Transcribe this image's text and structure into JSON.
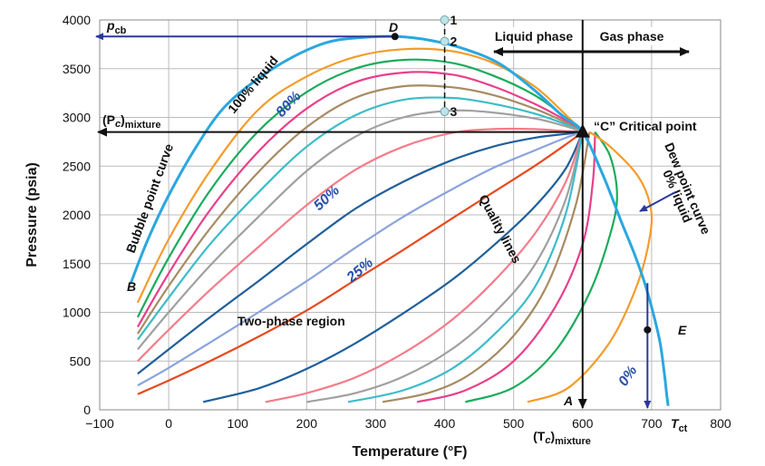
{
  "chart_data": {
    "type": "line",
    "xlabel": "Temperature (°F)",
    "ylabel": "Pressure (psia)",
    "xlim": [
      -100,
      800
    ],
    "ylim": [
      0,
      4000
    ],
    "x_ticks": [
      "−100",
      "0",
      "100",
      "200",
      "300",
      "400",
      "500",
      "600",
      "700",
      "800"
    ],
    "y_ticks": [
      "0",
      "500",
      "1000",
      "1500",
      "2000",
      "2500",
      "3000",
      "3500",
      "4000"
    ],
    "grid": true,
    "critical_point": {
      "x": 600,
      "y": 2850,
      "label": "“C” Critical point"
    },
    "point_D": {
      "x": 328,
      "y": 3830,
      "label": "D"
    },
    "point_E": {
      "x": 694,
      "y": 820,
      "label": "E"
    },
    "point_A": {
      "x": 600,
      "y": 50,
      "label": "A"
    },
    "point_B": {
      "x": -50,
      "y": 1350,
      "label": "B"
    },
    "states": [
      {
        "label": "1",
        "x": 400,
        "y": 4000
      },
      {
        "label": "2",
        "x": 400,
        "y": 3780
      },
      {
        "label": "3",
        "x": 400,
        "y": 3060
      }
    ],
    "envelope": {
      "x": [
        -55,
        -30,
        0,
        40,
        80,
        130,
        180,
        230,
        280,
        330,
        380,
        430,
        480,
        530,
        570,
        600,
        630,
        655,
        675,
        690,
        702,
        712,
        718,
        722,
        724
      ],
      "y": [
        1300,
        1750,
        2200,
        2700,
        3100,
        3400,
        3620,
        3770,
        3820,
        3830,
        3790,
        3700,
        3550,
        3280,
        3020,
        2850,
        2400,
        1950,
        1600,
        1300,
        1000,
        700,
        400,
        150,
        40
      ]
    },
    "quality_lines": [
      {
        "name": "80%",
        "x": [
          -45,
          0,
          60,
          130,
          200,
          270,
          340,
          410,
          470,
          530,
          575,
          600
        ],
        "y": [
          1100,
          1750,
          2450,
          3080,
          3420,
          3620,
          3700,
          3680,
          3560,
          3320,
          3030,
          2850
        ],
        "color": "#f39c2a"
      },
      {
        "x": [
          -45,
          0,
          60,
          130,
          200,
          270,
          340,
          410,
          470,
          530,
          575,
          600
        ],
        "y": [
          950,
          1560,
          2250,
          2860,
          3260,
          3500,
          3590,
          3560,
          3430,
          3230,
          3000,
          2850
        ],
        "color": "#1aab5b"
      },
      {
        "x": [
          -45,
          0,
          60,
          130,
          200,
          270,
          340,
          410,
          470,
          530,
          575,
          600
        ],
        "y": [
          850,
          1400,
          2050,
          2650,
          3090,
          3360,
          3460,
          3440,
          3320,
          3140,
          2970,
          2850
        ],
        "color": "#e8408a"
      },
      {
        "x": [
          -45,
          0,
          60,
          130,
          200,
          270,
          340,
          410,
          470,
          530,
          575,
          600
        ],
        "y": [
          780,
          1270,
          1860,
          2440,
          2900,
          3200,
          3320,
          3310,
          3230,
          3090,
          2950,
          2850
        ],
        "color": "#a88b62"
      },
      {
        "x": [
          -45,
          0,
          60,
          130,
          200,
          270,
          340,
          410,
          470,
          530,
          575,
          600
        ],
        "y": [
          720,
          1150,
          1700,
          2230,
          2700,
          3020,
          3180,
          3200,
          3140,
          3040,
          2930,
          2850
        ],
        "color": "#3cbcc8"
      },
      {
        "x": [
          -45,
          0,
          60,
          130,
          200,
          270,
          340,
          410,
          470,
          530,
          575,
          600
        ],
        "y": [
          620,
          1000,
          1480,
          1980,
          2450,
          2800,
          3000,
          3070,
          3050,
          2990,
          2910,
          2850
        ],
        "color": "#a0a0a0"
      },
      {
        "name": "50%",
        "x": [
          -45,
          0,
          60,
          130,
          200,
          270,
          340,
          410,
          470,
          530,
          575,
          600
        ],
        "y": [
          500,
          820,
          1230,
          1670,
          2100,
          2460,
          2700,
          2840,
          2880,
          2880,
          2860,
          2850
        ],
        "color": "#f47c8a"
      },
      {
        "x": [
          -45,
          0,
          60,
          130,
          200,
          270,
          340,
          410,
          470,
          530,
          575,
          600
        ],
        "y": [
          370,
          620,
          950,
          1320,
          1700,
          2060,
          2340,
          2560,
          2700,
          2790,
          2830,
          2850
        ],
        "color": "#1f5f9a"
      },
      {
        "name": "25%",
        "x": [
          -45,
          0,
          60,
          130,
          200,
          270,
          340,
          410,
          470,
          530,
          575,
          600
        ],
        "y": [
          250,
          430,
          690,
          1000,
          1320,
          1660,
          1980,
          2260,
          2480,
          2660,
          2790,
          2850
        ],
        "color": "#8aa3dc"
      },
      {
        "x": [
          -45,
          0,
          60,
          130,
          200,
          270,
          340,
          410,
          470,
          530,
          575,
          600
        ],
        "y": [
          160,
          300,
          500,
          750,
          1020,
          1330,
          1640,
          1960,
          2230,
          2500,
          2720,
          2850
        ],
        "color": "#e64a1e"
      },
      {
        "x": [
          50,
          130,
          200,
          270,
          340,
          410,
          470,
          530,
          575,
          600
        ],
        "y": [
          80,
          220,
          420,
          680,
          990,
          1330,
          1680,
          2080,
          2470,
          2850
        ],
        "color": "#1f5f9a"
      },
      {
        "x": [
          140,
          200,
          270,
          340,
          410,
          470,
          530,
          575,
          600
        ],
        "y": [
          80,
          170,
          330,
          580,
          920,
          1310,
          1800,
          2330,
          2850
        ],
        "color": "#f47c8a"
      },
      {
        "x": [
          200,
          270,
          340,
          410,
          470,
          530,
          575,
          600
        ],
        "y": [
          80,
          170,
          340,
          620,
          980,
          1480,
          2150,
          2850
        ],
        "color": "#a0a0a0"
      },
      {
        "x": [
          260,
          340,
          410,
          470,
          530,
          575,
          600
        ],
        "y": [
          80,
          200,
          420,
          760,
          1250,
          2000,
          2850
        ],
        "color": "#3cbcc8"
      },
      {
        "x": [
          310,
          380,
          440,
          500,
          550,
          590,
          610
        ],
        "y": [
          80,
          180,
          380,
          760,
          1300,
          2100,
          2850
        ],
        "color": "#a88b62"
      },
      {
        "x": [
          360,
          430,
          500,
          560,
          600,
          615,
          618
        ],
        "y": [
          80,
          200,
          500,
          1050,
          1700,
          2350,
          2850
        ],
        "color": "#e8408a"
      },
      {
        "x": [
          430,
          500,
          560,
          610,
          640,
          650,
          640,
          618
        ],
        "y": [
          80,
          230,
          600,
          1200,
          1800,
          2200,
          2600,
          2850
        ],
        "color": "#1aab5b"
      },
      {
        "x": [
          520,
          580,
          640,
          680,
          698,
          698,
          680,
          640,
          610
        ],
        "y": [
          80,
          230,
          700,
          1300,
          1800,
          2100,
          2400,
          2700,
          2850
        ],
        "color": "#f39c2a"
      }
    ]
  },
  "labels": {
    "pcb": "p",
    "pcb_sub": "cb",
    "pc_mix": "(P",
    "pc_mix_c": "c",
    "pc_mix_close": ")",
    "pc_mix_sub": "mixture",
    "tc_mix": "(T",
    "tc_mix_c": "c",
    "tc_mix_close": ")",
    "tc_mix_sub": "mixture",
    "tct": "T",
    "tct_sub": "ct",
    "liquid_phase": "Liquid phase",
    "gas_phase": "Gas phase",
    "critical": "“C” Critical point",
    "bubble": "Bubble point curve",
    "dew": "Dew point curve",
    "dew0": "0% liquid",
    "liq100": "100% liquid",
    "p80": "80%",
    "p50": "50%",
    "p25": "25%",
    "p0": "0%",
    "two_phase": "Two-phase region",
    "quality": "Quality lines",
    "D": "D",
    "E": "E",
    "A": "A",
    "B": "B",
    "s1": "1",
    "s2": "2",
    "s3": "3"
  },
  "colors": {
    "envelope": "#2aa7e0",
    "arrow": "#2a3a9a",
    "grid": "#bbbbbb",
    "dark": "#111111"
  }
}
